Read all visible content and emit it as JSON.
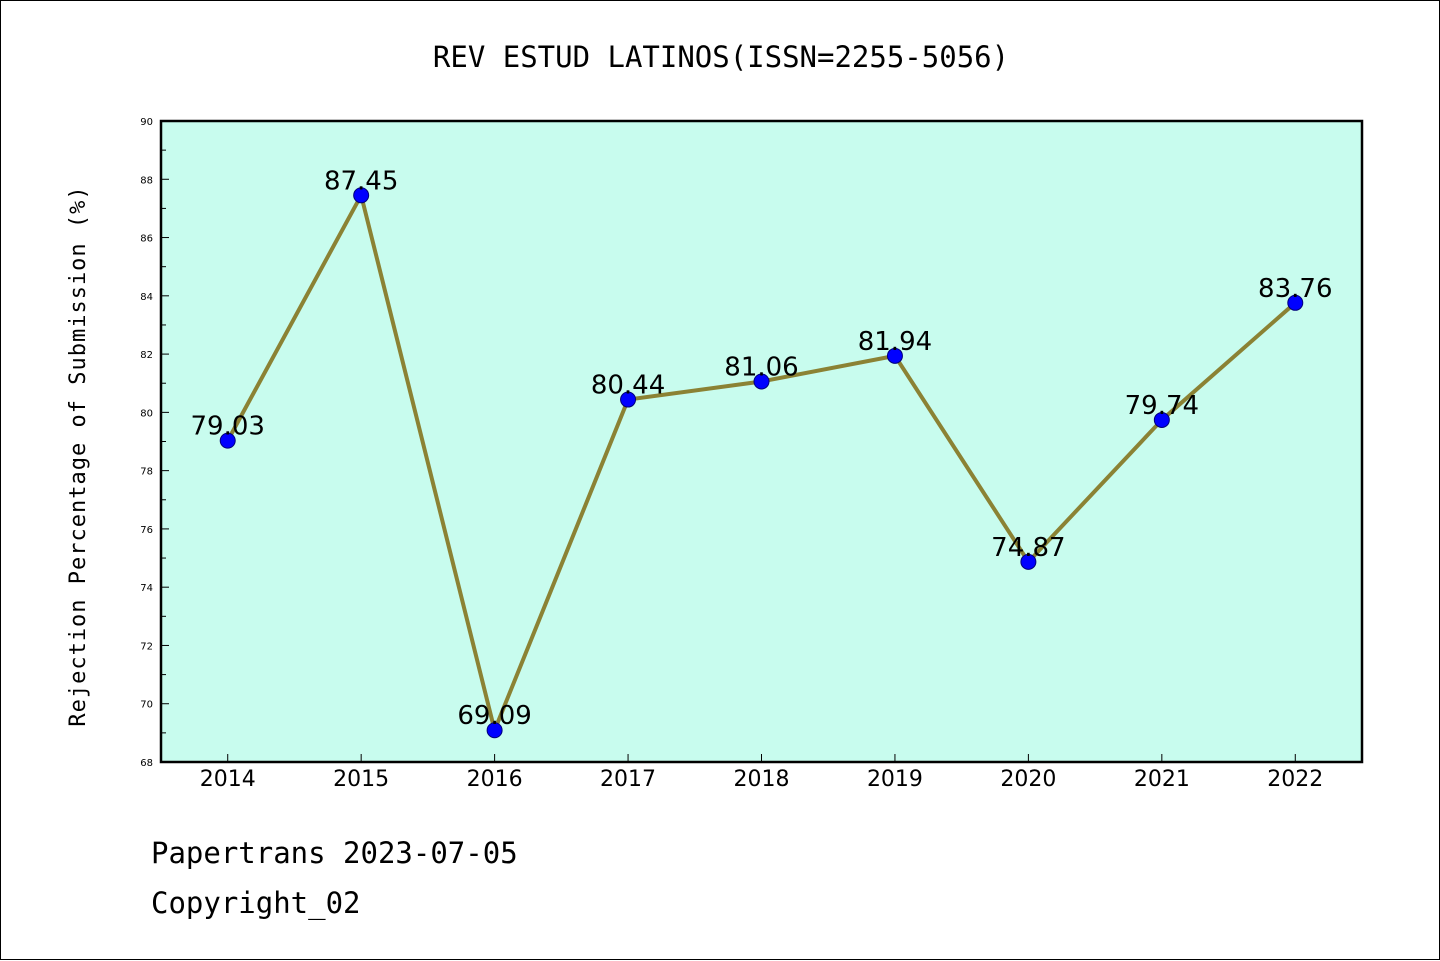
{
  "chart_data": {
    "type": "line",
    "title": "REV ESTUD LATINOS(ISSN=2255-5056)",
    "xlabel": "",
    "ylabel": "Rejection Percentage of Submission (%)",
    "categories": [
      "2014",
      "2015",
      "2016",
      "2017",
      "2018",
      "2019",
      "2020",
      "2021",
      "2022"
    ],
    "series": [
      {
        "values": [
          79.03,
          87.45,
          69.09,
          80.44,
          81.06,
          81.94,
          74.87,
          79.74,
          83.76
        ],
        "labels": [
          "79.03",
          "87.45",
          "69.09",
          "80.44",
          "81.06",
          "81.94",
          "74.87",
          "79.74",
          "83.76"
        ],
        "line_color": "#8b8234",
        "marker_color": "#0000ff"
      }
    ],
    "ylim": [
      68,
      90
    ],
    "yticks": [
      "68",
      "70",
      "72",
      "74",
      "76",
      "78",
      "80",
      "82",
      "84",
      "86",
      "88",
      "90"
    ],
    "grid": false,
    "plot_background": "#c8fcee"
  },
  "footer": {
    "line1": "Papertrans 2023-07-05",
    "line2": "Copyright_02"
  }
}
